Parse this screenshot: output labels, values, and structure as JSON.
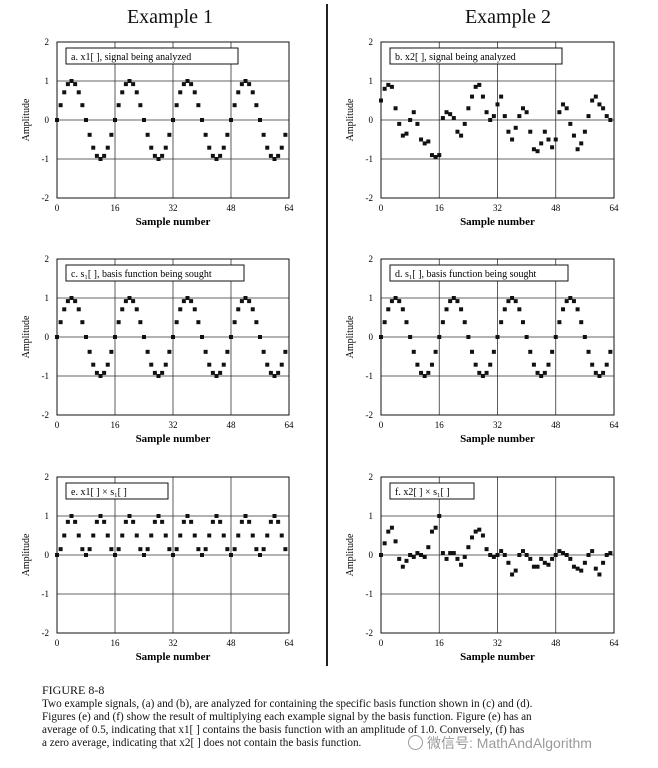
{
  "titles": {
    "left": "Example 1",
    "right": "Example 2"
  },
  "chart_data": [
    {
      "id": "a",
      "type": "scatter",
      "label": "a.  x1[ ], signal being analyzed",
      "xlabel": "Sample number",
      "ylabel": "Amplitude",
      "xlim": [
        0,
        64
      ],
      "ylim": [
        -2,
        2
      ],
      "xticks": [
        0,
        16,
        32,
        48,
        64
      ],
      "yticks": [
        -2,
        -1,
        0,
        1,
        2
      ],
      "grid": true,
      "x": [
        0,
        1,
        2,
        3,
        4,
        5,
        6,
        7,
        8,
        9,
        10,
        11,
        12,
        13,
        14,
        15,
        16,
        17,
        18,
        19,
        20,
        21,
        22,
        23,
        24,
        25,
        26,
        27,
        28,
        29,
        30,
        31,
        32,
        33,
        34,
        35,
        36,
        37,
        38,
        39,
        40,
        41,
        42,
        43,
        44,
        45,
        46,
        47,
        48,
        49,
        50,
        51,
        52,
        53,
        54,
        55,
        56,
        57,
        58,
        59,
        60,
        61,
        62,
        63
      ],
      "y": [
        0,
        0.38,
        0.71,
        0.92,
        1,
        0.92,
        0.71,
        0.38,
        0,
        -0.38,
        -0.71,
        -0.92,
        -1,
        -0.92,
        -0.71,
        -0.38,
        0,
        0.38,
        0.71,
        0.92,
        1,
        0.92,
        0.71,
        0.38,
        0,
        -0.38,
        -0.71,
        -0.92,
        -1,
        -0.92,
        -0.71,
        -0.38,
        0,
        0.38,
        0.71,
        0.92,
        1,
        0.92,
        0.71,
        0.38,
        0,
        -0.38,
        -0.71,
        -0.92,
        -1,
        -0.92,
        -0.71,
        -0.38,
        0,
        0.38,
        0.71,
        0.92,
        1,
        0.92,
        0.71,
        0.38,
        0,
        -0.38,
        -0.71,
        -0.92,
        -1,
        -0.92,
        -0.71,
        -0.38
      ]
    },
    {
      "id": "b",
      "type": "scatter",
      "label": "b.  x2[ ], signal being analyzed",
      "xlabel": "Sample number",
      "ylabel": "Amplitude",
      "xlim": [
        0,
        64
      ],
      "ylim": [
        -2,
        2
      ],
      "xticks": [
        0,
        16,
        32,
        48,
        64
      ],
      "yticks": [
        -2,
        -1,
        0,
        1,
        2
      ],
      "grid": true,
      "x": [
        0,
        1,
        2,
        3,
        4,
        5,
        6,
        7,
        8,
        9,
        10,
        11,
        12,
        13,
        14,
        15,
        16,
        17,
        18,
        19,
        20,
        21,
        22,
        23,
        24,
        25,
        26,
        27,
        28,
        29,
        30,
        31,
        32,
        33,
        34,
        35,
        36,
        37,
        38,
        39,
        40,
        41,
        42,
        43,
        44,
        45,
        46,
        47,
        48,
        49,
        50,
        51,
        52,
        53,
        54,
        55,
        56,
        57,
        58,
        59,
        60,
        61,
        62,
        63
      ],
      "y": [
        0.5,
        0.8,
        0.9,
        0.85,
        0.3,
        -0.1,
        -0.4,
        -0.35,
        0,
        0.2,
        -0.1,
        -0.5,
        -0.6,
        -0.55,
        -0.9,
        -0.95,
        -0.9,
        0.05,
        0.2,
        0.15,
        0.05,
        -0.3,
        -0.4,
        -0.1,
        0.3,
        0.6,
        0.85,
        0.9,
        0.6,
        0.2,
        0,
        0.1,
        0.4,
        0.6,
        0.1,
        -0.3,
        -0.5,
        -0.2,
        0.1,
        0.3,
        0.2,
        -0.3,
        -0.75,
        -0.8,
        -0.6,
        -0.3,
        -0.5,
        -0.7,
        -0.5,
        0.2,
        0.4,
        0.3,
        -0.1,
        -0.4,
        -0.75,
        -0.6,
        -0.3,
        0.1,
        0.5,
        0.6,
        0.4,
        0.3,
        0.1,
        0
      ],
      "label_dup": ""
    },
    {
      "id": "c",
      "type": "scatter",
      "label": "c.  s₁[ ], basis function being sought",
      "xlabel": "Sample number",
      "ylabel": "Amplitude",
      "xlim": [
        0,
        64
      ],
      "ylim": [
        -2,
        2
      ],
      "xticks": [
        0,
        16,
        32,
        48,
        64
      ],
      "yticks": [
        -2,
        -1,
        0,
        1,
        2
      ],
      "grid": true,
      "x": [
        0,
        1,
        2,
        3,
        4,
        5,
        6,
        7,
        8,
        9,
        10,
        11,
        12,
        13,
        14,
        15,
        16,
        17,
        18,
        19,
        20,
        21,
        22,
        23,
        24,
        25,
        26,
        27,
        28,
        29,
        30,
        31,
        32,
        33,
        34,
        35,
        36,
        37,
        38,
        39,
        40,
        41,
        42,
        43,
        44,
        45,
        46,
        47,
        48,
        49,
        50,
        51,
        52,
        53,
        54,
        55,
        56,
        57,
        58,
        59,
        60,
        61,
        62,
        63
      ],
      "y": [
        0,
        0.38,
        0.71,
        0.92,
        1,
        0.92,
        0.71,
        0.38,
        0,
        -0.38,
        -0.71,
        -0.92,
        -1,
        -0.92,
        -0.71,
        -0.38,
        0,
        0.38,
        0.71,
        0.92,
        1,
        0.92,
        0.71,
        0.38,
        0,
        -0.38,
        -0.71,
        -0.92,
        -1,
        -0.92,
        -0.71,
        -0.38,
        0,
        0.38,
        0.71,
        0.92,
        1,
        0.92,
        0.71,
        0.38,
        0,
        -0.38,
        -0.71,
        -0.92,
        -1,
        -0.92,
        -0.71,
        -0.38,
        0,
        0.38,
        0.71,
        0.92,
        1,
        0.92,
        0.71,
        0.38,
        0,
        -0.38,
        -0.71,
        -0.92,
        -1,
        -0.92,
        -0.71,
        -0.38
      ]
    },
    {
      "id": "d",
      "type": "scatter",
      "label": "d.  s₁[ ], basis function being sought",
      "xlabel": "Sample number",
      "ylabel": "Amplitude",
      "xlim": [
        0,
        64
      ],
      "ylim": [
        -2,
        2
      ],
      "xticks": [
        0,
        16,
        32,
        48,
        64
      ],
      "yticks": [
        -2,
        -1,
        0,
        1,
        2
      ],
      "grid": true,
      "x": [
        0,
        1,
        2,
        3,
        4,
        5,
        6,
        7,
        8,
        9,
        10,
        11,
        12,
        13,
        14,
        15,
        16,
        17,
        18,
        19,
        20,
        21,
        22,
        23,
        24,
        25,
        26,
        27,
        28,
        29,
        30,
        31,
        32,
        33,
        34,
        35,
        36,
        37,
        38,
        39,
        40,
        41,
        42,
        43,
        44,
        45,
        46,
        47,
        48,
        49,
        50,
        51,
        52,
        53,
        54,
        55,
        56,
        57,
        58,
        59,
        60,
        61,
        62,
        63
      ],
      "y": [
        0,
        0.38,
        0.71,
        0.92,
        1,
        0.92,
        0.71,
        0.38,
        0,
        -0.38,
        -0.71,
        -0.92,
        -1,
        -0.92,
        -0.71,
        -0.38,
        0,
        0.38,
        0.71,
        0.92,
        1,
        0.92,
        0.71,
        0.38,
        0,
        -0.38,
        -0.71,
        -0.92,
        -1,
        -0.92,
        -0.71,
        -0.38,
        0,
        0.38,
        0.71,
        0.92,
        1,
        0.92,
        0.71,
        0.38,
        0,
        -0.38,
        -0.71,
        -0.92,
        -1,
        -0.92,
        -0.71,
        -0.38,
        0,
        0.38,
        0.71,
        0.92,
        1,
        0.92,
        0.71,
        0.38,
        0,
        -0.38,
        -0.71,
        -0.92,
        -1,
        -0.92,
        -0.71,
        -0.38
      ]
    },
    {
      "id": "e",
      "type": "scatter",
      "label": "e.  x1[ ] × s₁[ ]",
      "xlabel": "Sample number",
      "ylabel": "Amplitude",
      "xlim": [
        0,
        64
      ],
      "ylim": [
        -2,
        2
      ],
      "xticks": [
        0,
        16,
        32,
        48,
        64
      ],
      "yticks": [
        -2,
        -1,
        0,
        1,
        2
      ],
      "grid": true,
      "x": [
        0,
        1,
        2,
        3,
        4,
        5,
        6,
        7,
        8,
        9,
        10,
        11,
        12,
        13,
        14,
        15,
        16,
        17,
        18,
        19,
        20,
        21,
        22,
        23,
        24,
        25,
        26,
        27,
        28,
        29,
        30,
        31,
        32,
        33,
        34,
        35,
        36,
        37,
        38,
        39,
        40,
        41,
        42,
        43,
        44,
        45,
        46,
        47,
        48,
        49,
        50,
        51,
        52,
        53,
        54,
        55,
        56,
        57,
        58,
        59,
        60,
        61,
        62,
        63
      ],
      "y": [
        0,
        0.15,
        0.5,
        0.85,
        1,
        0.85,
        0.5,
        0.15,
        0,
        0.15,
        0.5,
        0.85,
        1,
        0.85,
        0.5,
        0.15,
        0,
        0.15,
        0.5,
        0.85,
        1,
        0.85,
        0.5,
        0.15,
        0,
        0.15,
        0.5,
        0.85,
        1,
        0.85,
        0.5,
        0.15,
        0,
        0.15,
        0.5,
        0.85,
        1,
        0.85,
        0.5,
        0.15,
        0,
        0.15,
        0.5,
        0.85,
        1,
        0.85,
        0.5,
        0.15,
        0,
        0.15,
        0.5,
        0.85,
        1,
        0.85,
        0.5,
        0.15,
        0,
        0.15,
        0.5,
        0.85,
        1,
        0.85,
        0.5,
        0.15
      ]
    },
    {
      "id": "f",
      "type": "scatter",
      "label": "f.  x2[ ] × s₁[ ]",
      "xlabel": "Sample number",
      "ylabel": "Amplitude",
      "xlim": [
        0,
        64
      ],
      "ylim": [
        -2,
        2
      ],
      "xticks": [
        0,
        16,
        32,
        48,
        64
      ],
      "yticks": [
        -2,
        -1,
        0,
        1,
        2
      ],
      "grid": true,
      "x": [
        0,
        1,
        2,
        3,
        4,
        5,
        6,
        7,
        8,
        9,
        10,
        11,
        12,
        13,
        14,
        15,
        16,
        17,
        18,
        19,
        20,
        21,
        22,
        23,
        24,
        25,
        26,
        27,
        28,
        29,
        30,
        31,
        32,
        33,
        34,
        35,
        36,
        37,
        38,
        39,
        40,
        41,
        42,
        43,
        44,
        45,
        46,
        47,
        48,
        49,
        50,
        51,
        52,
        53,
        54,
        55,
        56,
        57,
        58,
        59,
        60,
        61,
        62,
        63
      ],
      "y": [
        0,
        0.3,
        0.6,
        0.7,
        0.35,
        -0.1,
        -0.3,
        -0.15,
        0,
        -0.05,
        0.05,
        0,
        -0.05,
        0.2,
        0.6,
        0.7,
        1,
        0.05,
        -0.1,
        0.05,
        0.05,
        -0.1,
        -0.25,
        -0.05,
        0.2,
        0.45,
        0.6,
        0.65,
        0.5,
        0.15,
        0,
        -0.05,
        0,
        0.1,
        0,
        -0.2,
        -0.5,
        -0.4,
        0,
        0.1,
        0,
        -0.1,
        -0.3,
        -0.3,
        -0.1,
        -0.2,
        -0.25,
        -0.1,
        0,
        0.1,
        0.05,
        0,
        -0.1,
        -0.3,
        -0.35,
        -0.4,
        -0.2,
        0,
        0.1,
        -0.35,
        -0.5,
        -0.2,
        0,
        0.05
      ]
    }
  ],
  "caption": {
    "figure": "FIGURE 8-8",
    "lines": [
      "Two example signals, (a) and (b), are analyzed for containing the specific basis function shown in (c) and (d).",
      "Figures (e) and (f) show the result of multiplying each example signal by the basis function.  Figure (e) has an",
      "average of 0.5, indicating that x1[ ] contains the basis function with an amplitude of 1.0.  Conversely, (f) has",
      "a zero average, indicating that x2[ ] does not contain the basis function."
    ]
  },
  "watermark": "微信号: MathAndAlgorithm"
}
